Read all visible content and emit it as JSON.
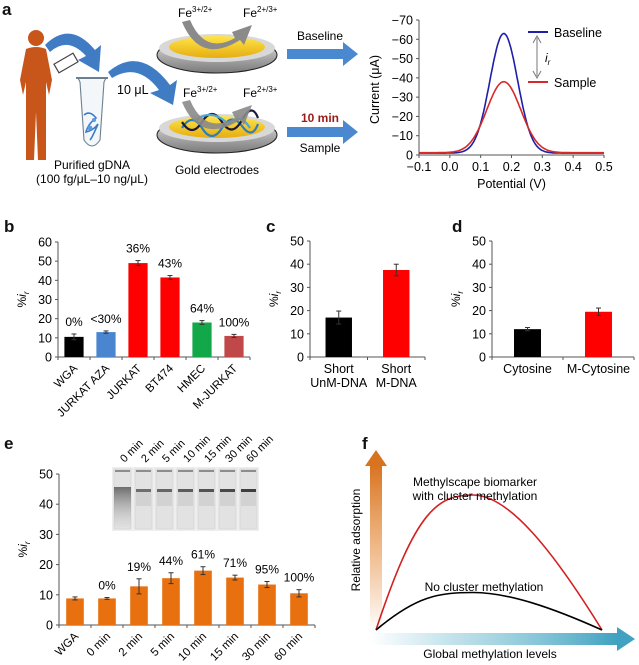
{
  "figure": {
    "panel_labels": [
      "a",
      "b",
      "c",
      "d",
      "e",
      "f"
    ]
  },
  "panel_a": {
    "sample_label_1": "Purified gDNA",
    "sample_label_2": "(100 fg/μL–10 ng/μL)",
    "volume_label": "10 μL",
    "electrode_label": "Gold electrodes",
    "redox_in": "Fe",
    "redox_in_sup": "3+/2+",
    "redox_out": "Fe",
    "redox_out_sup": "2+/3+",
    "baseline_arrow_label": "Baseline",
    "sample_arrow_label": "Sample",
    "time_label": "10 min",
    "icons": [
      "human-figure-icon",
      "eppendorf-tube-icon",
      "gold-electrode-icon",
      "dna-helix-icon",
      "curved-arrow-icon"
    ],
    "colors": {
      "human": "#c8561a",
      "arrow_blue": "#3f7cc4",
      "gold": "#f3c91c",
      "time_red": "#9b1b1b"
    }
  },
  "chart_data": [
    {
      "id": "a",
      "type": "line",
      "title": "",
      "xlabel": "Potential (V)",
      "ylabel": "Current (μA)",
      "xlim": [
        -0.1,
        0.5
      ],
      "ylim": [
        0,
        -70
      ],
      "xticks": [
        "−0.1",
        "0.0",
        "0.1",
        "0.2",
        "0.3",
        "0.4",
        "0.5"
      ],
      "yticks": [
        "0",
        "−10",
        "−20",
        "−30",
        "−40",
        "−50",
        "−60",
        "−70"
      ],
      "legend": "top-right",
      "annotation": "i_r",
      "series": [
        {
          "name": "Baseline",
          "color": "#1f1fa8",
          "peak_x": 0.175,
          "peak_y": -63,
          "width": 0.045,
          "baseline_y": -1
        },
        {
          "name": "Sample",
          "color": "#d42a2a",
          "peak_x": 0.175,
          "peak_y": -38,
          "width": 0.055,
          "baseline_y": -1.2
        }
      ]
    },
    {
      "id": "b",
      "type": "bar",
      "ylabel": "%i_r",
      "ylim": [
        0,
        60
      ],
      "yticks": [
        "0",
        "10",
        "20",
        "30",
        "40",
        "50",
        "60"
      ],
      "categories": [
        "WGA",
        "JURKAT AZA",
        "JURKAT",
        "BT474",
        "HMEC",
        "M-JURKAT"
      ],
      "values": [
        10.5,
        13,
        49,
        41.5,
        18,
        11
      ],
      "errors": [
        1.5,
        0.6,
        1.3,
        1.0,
        1.0,
        0.8
      ],
      "labels": [
        "0%",
        "<30%",
        "36%",
        "43%",
        "64%",
        "100%"
      ],
      "colors": [
        "#000000",
        "#4a86d0",
        "#ff0000",
        "#ff0000",
        "#12a84a",
        "#c04848"
      ]
    },
    {
      "id": "c",
      "type": "bar",
      "ylabel": "%i_r",
      "ylim": [
        0,
        50
      ],
      "yticks": [
        "0",
        "10",
        "20",
        "30",
        "40",
        "50"
      ],
      "categories": [
        "Short\nUnM-DNA",
        "Short\nM-DNA"
      ],
      "values": [
        17,
        37.5
      ],
      "errors": [
        2.8,
        2.5
      ],
      "colors": [
        "#000000",
        "#ff0000"
      ]
    },
    {
      "id": "d",
      "type": "bar",
      "ylabel": "%i_r",
      "ylim": [
        0,
        50
      ],
      "yticks": [
        "0",
        "10",
        "20",
        "30",
        "40",
        "50"
      ],
      "categories": [
        "Cytosine",
        "M-Cytosine"
      ],
      "values": [
        12,
        19.5
      ],
      "errors": [
        0.7,
        1.6
      ],
      "colors": [
        "#000000",
        "#ff0000"
      ]
    },
    {
      "id": "e",
      "type": "bar",
      "ylabel": "%i_r",
      "ylim": [
        0,
        50
      ],
      "yticks": [
        "0",
        "10",
        "20",
        "30",
        "40",
        "50"
      ],
      "categories": [
        "WGA",
        "0 min",
        "2 min",
        "5 min",
        "10 min",
        "15 min",
        "30 min",
        "60 min"
      ],
      "values": [
        8.8,
        8.8,
        12.8,
        15.5,
        18,
        15.7,
        13.4,
        10.5
      ],
      "errors": [
        0.5,
        0.3,
        2.5,
        1.8,
        1.3,
        0.8,
        1.0,
        1.2
      ],
      "labels": [
        "",
        "0%",
        "19%",
        "44%",
        "61%",
        "71%",
        "95%",
        "100%"
      ],
      "color": "#e8700f",
      "inset_gel_lanes": [
        "0 min",
        "2 min",
        "5 min",
        "10 min",
        "15 min",
        "30 min",
        "60 min"
      ]
    },
    {
      "id": "f",
      "type": "line",
      "xlabel": "Global methylation levels",
      "ylabel": "Relative adsorption",
      "series": [
        {
          "name": "Methylscape biomarker with cluster methylation",
          "color": "#d42020",
          "peak_rel": 0.9
        },
        {
          "name": "No cluster methylation",
          "color": "#000000",
          "peak_rel": 0.25
        }
      ],
      "annotations": [
        "Methylscape biomarker",
        "with cluster methylation",
        "No cluster methylation"
      ]
    }
  ]
}
